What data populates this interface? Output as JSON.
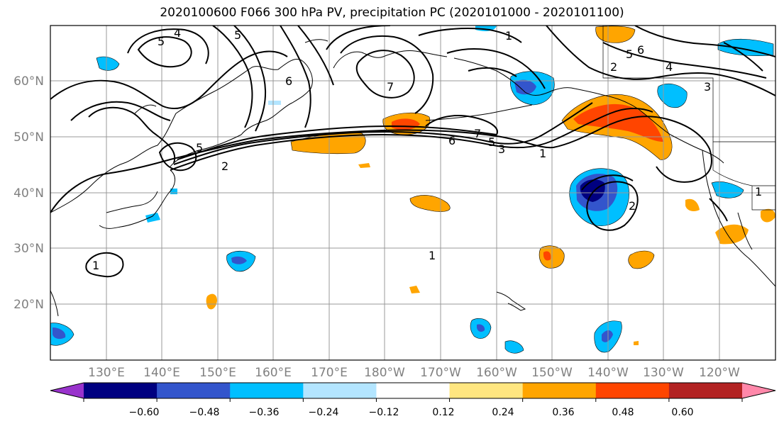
{
  "title": "2020100600 F066 300 hPa PV, precipitation PC (2020101000 - 2020101100)",
  "lat_labels": [
    "60°N",
    "50°N",
    "40°N",
    "30°N",
    "20°N"
  ],
  "lon_labels": [
    "130°E",
    "140°E",
    "150°E",
    "160°E",
    "170°E",
    "180°W",
    "170°W",
    "160°W",
    "150°W",
    "140°W",
    "130°W",
    "120°W"
  ],
  "colorbar": {
    "colors": [
      "#9933cc",
      "#000080",
      "#3355cc",
      "#00bfff",
      "#b3e5ff",
      "#ffffff",
      "#ffe680",
      "#ffa500",
      "#ff4500",
      "#b22222",
      "#ff88aa"
    ],
    "tick_labels": [
      "−0.60",
      "−0.48",
      "−0.36",
      "−0.24",
      "−0.12",
      "0.12",
      "0.24",
      "0.36",
      "0.48",
      "0.60"
    ]
  },
  "contour_labels": [
    "5",
    "4",
    "5",
    "6",
    "7",
    "6",
    "5",
    "3",
    "1",
    "7",
    "5",
    "2",
    "1",
    "2",
    "3",
    "4",
    "5",
    "6",
    "2",
    "1",
    "1",
    "1"
  ]
}
